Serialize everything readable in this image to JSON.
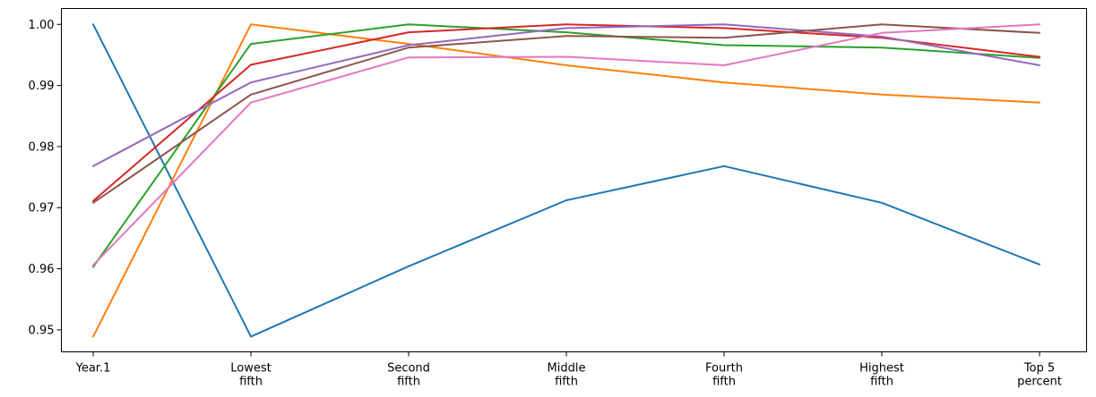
{
  "chart_data": {
    "type": "line",
    "categories": [
      [
        "Year.1"
      ],
      [
        "Lowest",
        "fifth"
      ],
      [
        "Second",
        "fifth"
      ],
      [
        "Middle",
        "fifth"
      ],
      [
        "Fourth",
        "fifth"
      ],
      [
        "Highest",
        "fifth"
      ],
      [
        "Top 5",
        "percent"
      ]
    ],
    "series": [
      {
        "color": "#1f77b4",
        "values": [
          1.0,
          0.9489,
          0.9604,
          0.9712,
          0.9768,
          0.9708,
          0.9607
        ]
      },
      {
        "color": "#ff7f0e",
        "values": [
          0.9489,
          1.0,
          0.9968,
          0.9933,
          0.9905,
          0.9885,
          0.9872
        ]
      },
      {
        "color": "#2ca02c",
        "values": [
          0.9603,
          0.9968,
          1.0,
          0.9987,
          0.9966,
          0.9962,
          0.9945
        ]
      },
      {
        "color": "#d62728",
        "values": [
          0.9711,
          0.9934,
          0.9987,
          1.0,
          0.9994,
          0.9978,
          0.9947
        ]
      },
      {
        "color": "#9467bd",
        "values": [
          0.9768,
          0.9905,
          0.9966,
          0.9994,
          1.0,
          0.998,
          0.9933
        ]
      },
      {
        "color": "#8c564b",
        "values": [
          0.9708,
          0.9885,
          0.9962,
          0.9981,
          0.9978,
          1.0,
          0.9986
        ]
      },
      {
        "color": "#e377c2",
        "values": [
          0.9606,
          0.9872,
          0.9946,
          0.9947,
          0.9933,
          0.9986,
          1.0
        ]
      }
    ],
    "y_ticks": [
      "0.95",
      "0.96",
      "0.97",
      "0.98",
      "0.99",
      "1.00"
    ],
    "ylim": [
      0.9464,
      1.0026
    ],
    "grid": false,
    "legend": "none"
  }
}
